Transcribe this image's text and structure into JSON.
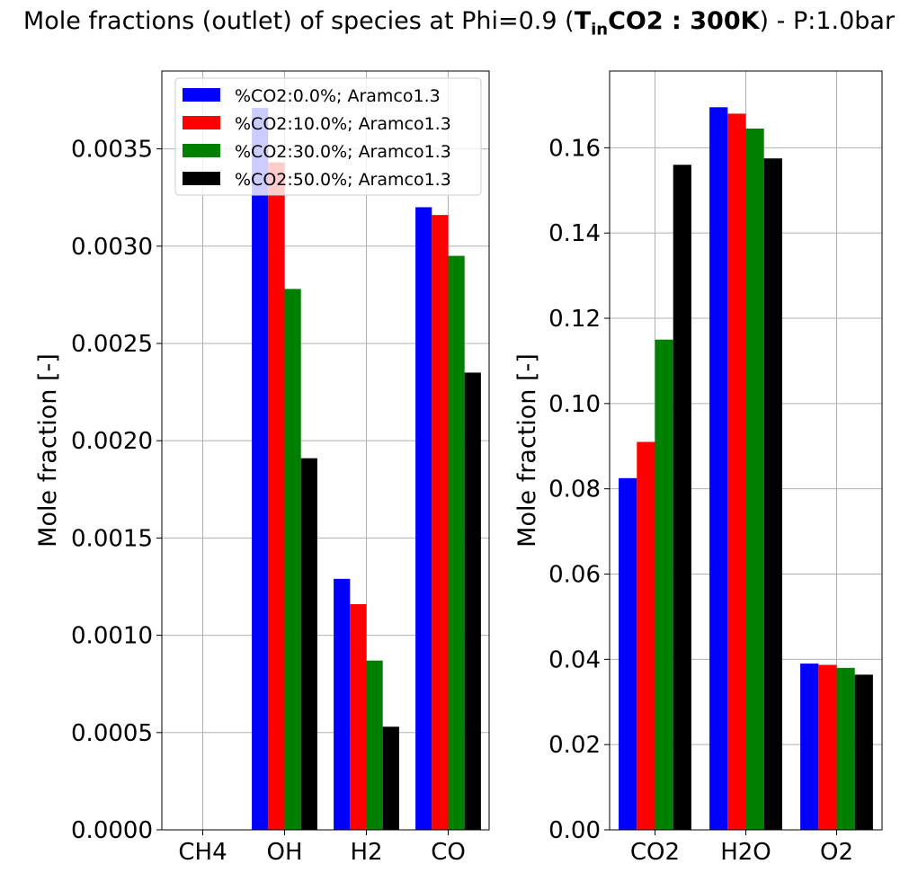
{
  "title": {
    "prefix": "Mole fractions (outlet) of species at Phi=0.9  (",
    "bold_main": "T",
    "bold_sub": "in",
    "bold_rest": "CO2 : 300K",
    "suffix": ") - P:1.0bar"
  },
  "colors": [
    "#0000ff",
    "#ff0000",
    "#008000",
    "#000000"
  ],
  "chart_data": [
    {
      "type": "bar",
      "categories": [
        "CH4",
        "OH",
        "H2",
        "CO"
      ],
      "ylabel": "Mole fraction [-]",
      "ylim": [
        0,
        0.0039
      ],
      "yticks": [
        0.0,
        0.0005,
        0.001,
        0.0015,
        0.002,
        0.0025,
        0.003,
        0.0035
      ],
      "ytick_labels": [
        "0.0000",
        "0.0005",
        "0.0010",
        "0.0015",
        "0.0020",
        "0.0025",
        "0.0030",
        "0.0035"
      ],
      "grid": true,
      "legend_position": "top-right",
      "series": [
        {
          "name": "%CO2:0.0%; Aramco1.3",
          "values": [
            0.0,
            0.00371,
            0.00129,
            0.0032
          ]
        },
        {
          "name": "%CO2:10.0%; Aramco1.3",
          "values": [
            0.0,
            0.00343,
            0.00116,
            0.00316
          ]
        },
        {
          "name": "%CO2:30.0%; Aramco1.3",
          "values": [
            0.0,
            0.00278,
            0.00087,
            0.00295
          ]
        },
        {
          "name": "%CO2:50.0%; Aramco1.3",
          "values": [
            0.0,
            0.00191,
            0.00053,
            0.00235
          ]
        }
      ]
    },
    {
      "type": "bar",
      "categories": [
        "CO2",
        "H2O",
        "O2"
      ],
      "ylabel": "Mole fraction [-]",
      "ylim": [
        0,
        0.178
      ],
      "yticks": [
        0.0,
        0.02,
        0.04,
        0.06,
        0.08,
        0.1,
        0.12,
        0.14,
        0.16
      ],
      "ytick_labels": [
        "0.00",
        "0.02",
        "0.04",
        "0.06",
        "0.08",
        "0.10",
        "0.12",
        "0.14",
        "0.16"
      ],
      "grid": true,
      "series": [
        {
          "name": "%CO2:0.0%; Aramco1.3",
          "values": [
            0.0825,
            0.1695,
            0.039
          ]
        },
        {
          "name": "%CO2:10.0%; Aramco1.3",
          "values": [
            0.091,
            0.168,
            0.0387
          ]
        },
        {
          "name": "%CO2:30.0%; Aramco1.3",
          "values": [
            0.115,
            0.1645,
            0.038
          ]
        },
        {
          "name": "%CO2:50.0%; Aramco1.3",
          "values": [
            0.156,
            0.1575,
            0.0364
          ]
        }
      ]
    }
  ]
}
